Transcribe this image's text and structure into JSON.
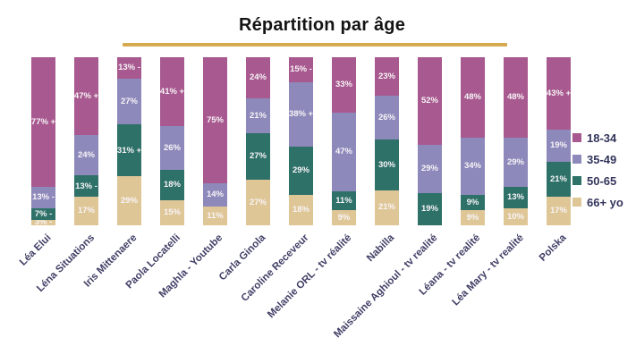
{
  "title": "Répartition par âge",
  "accent_underline_color": "#d5a94f",
  "chart_data": {
    "type": "bar",
    "subtype": "stacked-100-percent",
    "title": "Répartition par âge",
    "xlabel": "",
    "ylabel": "",
    "axis_visible": false,
    "grid": false,
    "legend_position": "right",
    "stack_order_top_to_bottom": [
      "18-34",
      "35-49",
      "50-65",
      "66+ yo"
    ],
    "categories": [
      "Léa Elui",
      "Léna Situations",
      "Iris Mittenaere",
      "Paola Locatelli",
      "Maghla - Youtube",
      "Carla Ginola",
      "Caroline Receveur",
      "Melanie ORL - tv réalité",
      "Nabilla",
      "Maissaine Aghioul - tv realité",
      "Léana - tv realité",
      "Léa Mary - tv realité",
      "Polska"
    ],
    "series": [
      {
        "name": "18-34",
        "color": "#a8598f",
        "values": [
          77,
          47,
          13,
          41,
          75,
          24,
          15,
          33,
          23,
          52,
          48,
          48,
          43
        ],
        "labels": [
          "77% +",
          "47% +",
          "13% -",
          "41% +",
          "75%",
          "24%",
          "15% -",
          "33%",
          "23%",
          "52%",
          "48%",
          "48%",
          "43% +"
        ]
      },
      {
        "name": "35-49",
        "color": "#8d89bb",
        "values": [
          13,
          24,
          27,
          26,
          14,
          21,
          38,
          47,
          26,
          29,
          34,
          29,
          19
        ],
        "labels": [
          "13% -",
          "24%",
          "27%",
          "26%",
          "14%",
          "21%",
          "38% +",
          "47%",
          "26%",
          "29%",
          "34%",
          "29%",
          "19%"
        ]
      },
      {
        "name": "50-65",
        "color": "#2e7168",
        "values": [
          7,
          13,
          31,
          18,
          0,
          27,
          29,
          11,
          30,
          19,
          9,
          13,
          21
        ],
        "labels": [
          "7% -",
          "13% -",
          "31% +",
          "18%",
          "",
          "27%",
          "29%",
          "11%",
          "30%",
          "19%",
          "9%",
          "13%",
          "21%"
        ]
      },
      {
        "name": "66+ yo",
        "color": "#dfc697",
        "values": [
          3,
          17,
          29,
          15,
          11,
          27,
          18,
          9,
          21,
          0,
          9,
          10,
          17
        ],
        "labels": [
          "3% -",
          "17%",
          "29%",
          "15%",
          "11%",
          "27%",
          "18%",
          "9%",
          "21%",
          "",
          "9%",
          "10%",
          "17%"
        ]
      }
    ],
    "legend": [
      {
        "label": "18-34",
        "color": "#a8598f"
      },
      {
        "label": "35-49",
        "color": "#8d89bb"
      },
      {
        "label": "50-65",
        "color": "#2e7168"
      },
      {
        "label": "66+ yo",
        "color": "#dfc697"
      }
    ]
  }
}
